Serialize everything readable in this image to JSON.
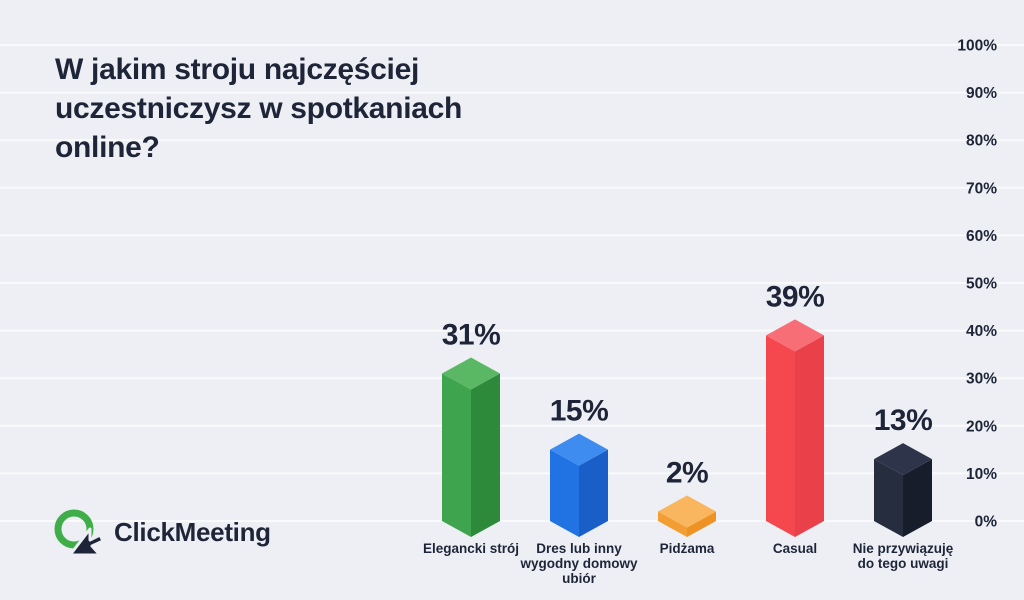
{
  "page": {
    "background": "#edeff4",
    "gridline_color": "rgba(255,255,255,0.7)",
    "text_color": "#1e2538"
  },
  "title": "W jakim stroju najczęściej uczestniczysz w spotkaniach online?",
  "logo": {
    "text": "ClickMeeting",
    "ring_color": "#3fae49",
    "arrow_color": "#1e2538"
  },
  "chart_data": {
    "type": "bar",
    "style": "3d-isometric-columns",
    "title": "W jakim stroju najczęściej uczestniczysz w spotkaniach online?",
    "unit": "%",
    "ylim": [
      0,
      100
    ],
    "ytick_step": 10,
    "yaxis_side": "right",
    "grid": true,
    "legend": false,
    "yticks": [
      "0%",
      "10%",
      "20%",
      "30%",
      "40%",
      "50%",
      "60%",
      "70%",
      "80%",
      "90%",
      "100%"
    ],
    "categories": [
      "Elegancki strój",
      "Dres lub inny wygodny domowy ubiór",
      "Pidżama",
      "Casual",
      "Nie przywiązuję do tego uwagi"
    ],
    "values": [
      31,
      15,
      2,
      39,
      13
    ],
    "bars": [
      {
        "slug": "elegancki-stroj",
        "category": "Elegancki strój",
        "category_lines": [
          "Elegancki strój"
        ],
        "value": 31,
        "value_label": "31%",
        "colors": {
          "top": "#5ab865",
          "left": "#3fa44e",
          "right": "#2e8a3b",
          "label": "#2e9e44"
        }
      },
      {
        "slug": "dres-lub-inny-wygodny-domowy-ubior",
        "category": "Dres lub inny wygodny domowy ubiór",
        "category_lines": [
          "Dres lub inny",
          "wygodny domowy",
          "ubiór"
        ],
        "value": 15,
        "value_label": "15%",
        "colors": {
          "top": "#3e8cf0",
          "left": "#2173e3",
          "right": "#1a5fc7",
          "label": "#2277e8"
        }
      },
      {
        "slug": "pidzama",
        "category": "Pidżama",
        "category_lines": [
          "Pidżama"
        ],
        "value": 2,
        "value_label": "2%",
        "colors": {
          "top": "#f9b65f",
          "left": "#f29e33",
          "right": "#ee9224",
          "label": "#f6a42f"
        }
      },
      {
        "slug": "casual",
        "category": "Casual",
        "category_lines": [
          "Casual"
        ],
        "value": 39,
        "value_label": "39%",
        "colors": {
          "top": "#f76e76",
          "left": "#f4474e",
          "right": "#e9404a",
          "label": "#f4434b"
        }
      },
      {
        "slug": "nie-przywiazuje-do-tego-uwagi",
        "category": "Nie przywiązuję do tego uwagi",
        "category_lines": [
          "Nie przywiązuję",
          "do tego uwagi"
        ],
        "value": 13,
        "value_label": "13%",
        "colors": {
          "top": "#2e354a",
          "left": "#262d3f",
          "right": "#181d2b",
          "label": "#1f2637"
        }
      }
    ]
  }
}
